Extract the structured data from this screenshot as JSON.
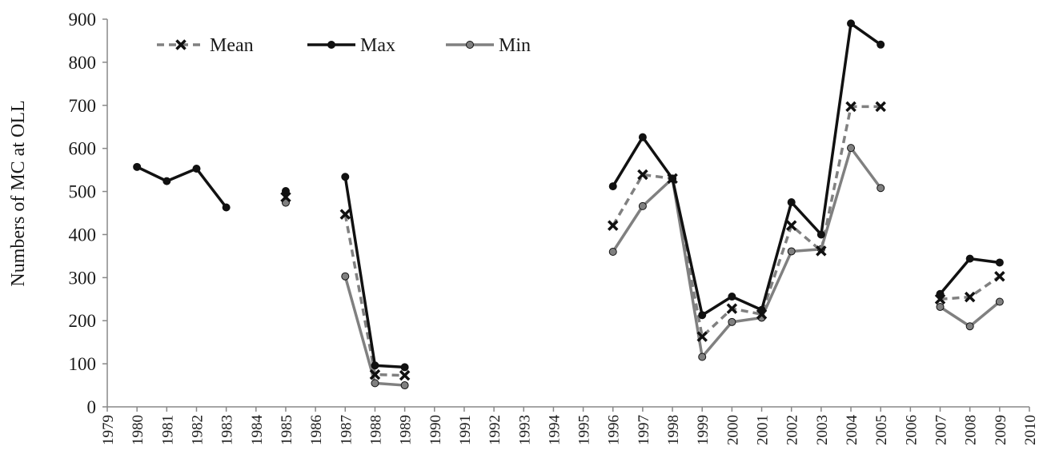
{
  "chart_data": {
    "type": "line",
    "title": "",
    "xlabel": "",
    "ylabel": "Numbers of MC at OLL",
    "xlim": [
      1979,
      2010
    ],
    "ylim": [
      0,
      900
    ],
    "yticks": [
      "0",
      "100",
      "200",
      "300",
      "400",
      "500",
      "600",
      "700",
      "800",
      "900"
    ],
    "xticks": [
      "1979",
      "1980",
      "1981",
      "1982",
      "1983",
      "1984",
      "1985",
      "1986",
      "1987",
      "1988",
      "1989",
      "1990",
      "1991",
      "1992",
      "1993",
      "1994",
      "1995",
      "1996",
      "1997",
      "1998",
      "1999",
      "2000",
      "2001",
      "2002",
      "2003",
      "2004",
      "2005",
      "2006",
      "2007",
      "2008",
      "2009",
      "2010"
    ],
    "grid": false,
    "legend_position": "top-left",
    "series": [
      {
        "name": "Mean",
        "color": "#808080",
        "line": "dashed",
        "marker": "x",
        "marker_color": "#111111",
        "points": [
          [
            1985,
            487
          ],
          [
            1987,
            447
          ],
          [
            1988,
            75
          ],
          [
            1989,
            73
          ],
          [
            1996,
            421
          ],
          [
            1997,
            539
          ],
          [
            1998,
            530
          ],
          [
            1999,
            163
          ],
          [
            2000,
            228
          ],
          [
            2001,
            215
          ],
          [
            2002,
            421
          ],
          [
            2003,
            362
          ],
          [
            2004,
            697
          ],
          [
            2005,
            697
          ],
          [
            2007,
            250
          ],
          [
            2008,
            255
          ],
          [
            2009,
            303
          ]
        ]
      },
      {
        "name": "Max",
        "color": "#111111",
        "line": "solid",
        "marker": "circle",
        "marker_color": "#111111",
        "points": [
          [
            1980,
            557
          ],
          [
            1981,
            524
          ],
          [
            1982,
            553
          ],
          [
            1983,
            463
          ],
          [
            1985,
            501
          ],
          [
            1987,
            534
          ],
          [
            1988,
            96
          ],
          [
            1989,
            92
          ],
          [
            1996,
            512
          ],
          [
            1997,
            626
          ],
          [
            1998,
            530
          ],
          [
            1999,
            213
          ],
          [
            2000,
            256
          ],
          [
            2001,
            225
          ],
          [
            2002,
            475
          ],
          [
            2003,
            400
          ],
          [
            2004,
            890
          ],
          [
            2005,
            841
          ],
          [
            2007,
            262
          ],
          [
            2008,
            344
          ],
          [
            2009,
            335
          ]
        ]
      },
      {
        "name": "Min",
        "color": "#808080",
        "line": "solid",
        "marker": "circle",
        "marker_color": "#808080",
        "points": [
          [
            1985,
            474
          ],
          [
            1987,
            303
          ],
          [
            1988,
            55
          ],
          [
            1989,
            50
          ],
          [
            1996,
            360
          ],
          [
            1997,
            466
          ],
          [
            1998,
            530
          ],
          [
            1999,
            116
          ],
          [
            2000,
            197
          ],
          [
            2001,
            207
          ],
          [
            2002,
            361
          ],
          [
            2003,
            366
          ],
          [
            2004,
            601
          ],
          [
            2005,
            508
          ],
          [
            2007,
            232
          ],
          [
            2008,
            187
          ],
          [
            2009,
            244
          ]
        ]
      }
    ]
  }
}
